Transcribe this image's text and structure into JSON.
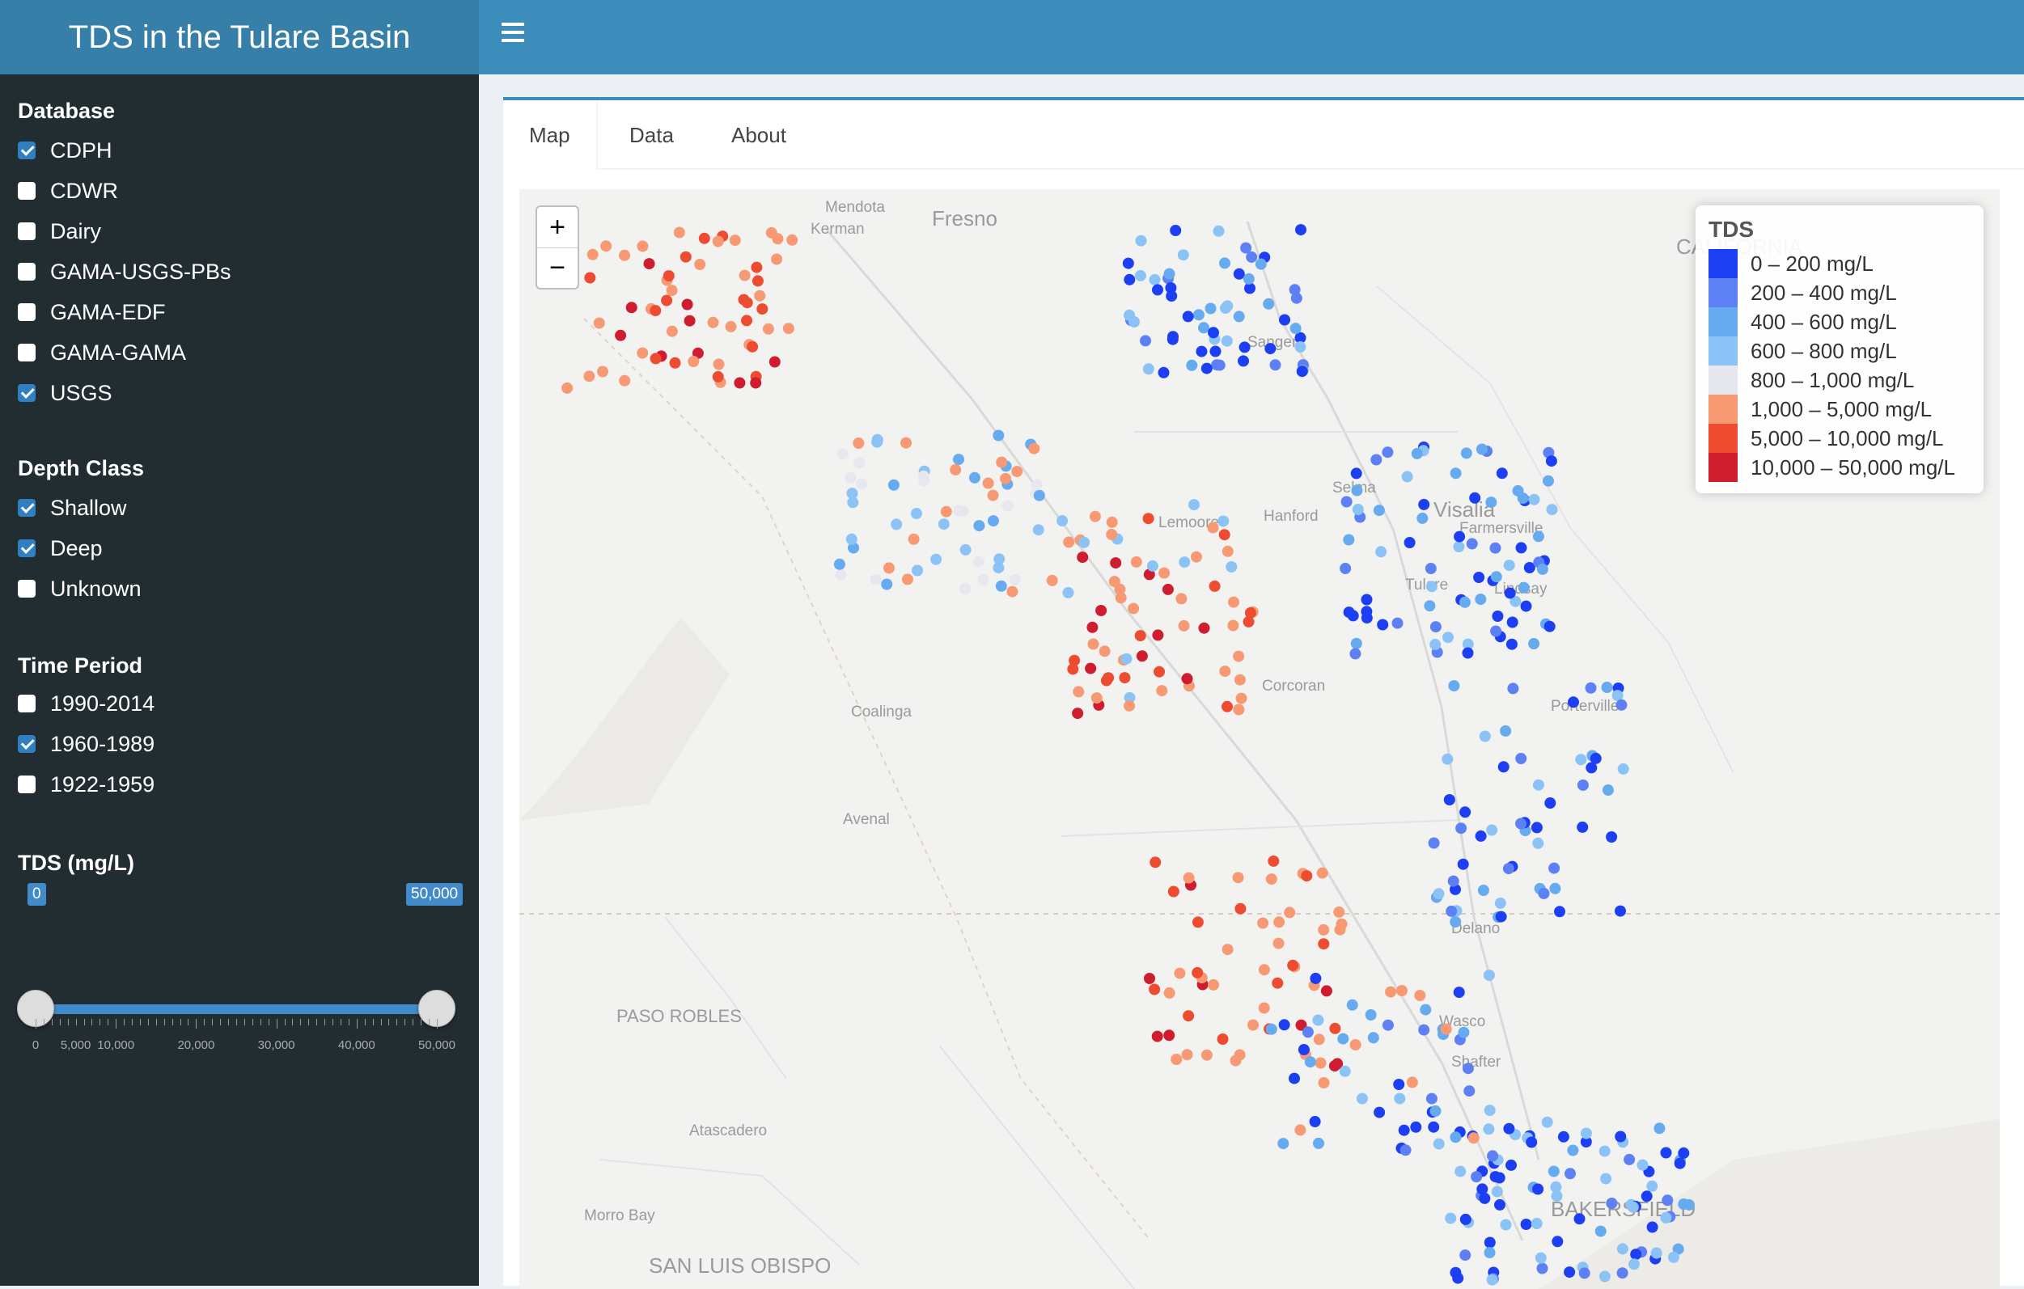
{
  "app": {
    "title": "TDS in the Tulare Basin"
  },
  "sidebar": {
    "database": {
      "title": "Database",
      "items": [
        {
          "label": "CDPH",
          "checked": true
        },
        {
          "label": "CDWR",
          "checked": false
        },
        {
          "label": "Dairy",
          "checked": false
        },
        {
          "label": "GAMA-USGS-PBs",
          "checked": false
        },
        {
          "label": "GAMA-EDF",
          "checked": false
        },
        {
          "label": "GAMA-GAMA",
          "checked": false
        },
        {
          "label": "USGS",
          "checked": true
        }
      ]
    },
    "depth": {
      "title": "Depth Class",
      "items": [
        {
          "label": "Shallow",
          "checked": true
        },
        {
          "label": "Deep",
          "checked": true
        },
        {
          "label": "Unknown",
          "checked": false
        }
      ]
    },
    "time": {
      "title": "Time Period",
      "items": [
        {
          "label": "1990-2014",
          "checked": false
        },
        {
          "label": "1960-1989",
          "checked": true
        },
        {
          "label": "1922-1959",
          "checked": false
        }
      ]
    },
    "tds": {
      "title": "TDS (mg/L)",
      "min": 0,
      "max": 50000,
      "value_low": 0,
      "value_high": 50000,
      "low_label": "0",
      "high_label": "50,000",
      "tick_labels": [
        "0",
        "5,000",
        "10,000",
        "20,000",
        "30,000",
        "40,000",
        "50,000"
      ],
      "tick_values": [
        0,
        5000,
        10000,
        20000,
        30000,
        40000,
        50000
      ]
    }
  },
  "tabs": [
    {
      "label": "Map",
      "active": true
    },
    {
      "label": "Data",
      "active": false
    },
    {
      "label": "About",
      "active": false
    }
  ],
  "map": {
    "zoom_in": "+",
    "zoom_out": "−",
    "place_labels": [
      "Mendota",
      "Kerman",
      "Fresno",
      "Sanger",
      "Selma",
      "Hanford",
      "Lemoore",
      "Visalia",
      "Farmersville",
      "Tulare",
      "Lindsay",
      "Porterville",
      "Corcoran",
      "Coalinga",
      "Avenal",
      "Delano",
      "Wasco",
      "Shafter",
      "PASO ROBLES",
      "Atascadero",
      "Morro Bay",
      "SAN LUIS OBISPO",
      "BAKERSFIELD",
      "CALIFORNIA"
    ],
    "legend": {
      "title": "TDS",
      "items": [
        {
          "label": "0 – 200 mg/L",
          "color": "#1c3ff4"
        },
        {
          "label": "200 – 400 mg/L",
          "color": "#5d80f4"
        },
        {
          "label": "400 – 600 mg/L",
          "color": "#66aaf0"
        },
        {
          "label": "600 – 800 mg/L",
          "color": "#8cc3f7"
        },
        {
          "label": "800 – 1,000 mg/L",
          "color": "#e7e7ef"
        },
        {
          "label": "1,000 – 5,000 mg/L",
          "color": "#f79a74"
        },
        {
          "label": "5,000 – 10,000 mg/L",
          "color": "#ee4c30"
        },
        {
          "label": "10,000 – 50,000 mg/L",
          "color": "#cf1d2f"
        }
      ]
    }
  }
}
